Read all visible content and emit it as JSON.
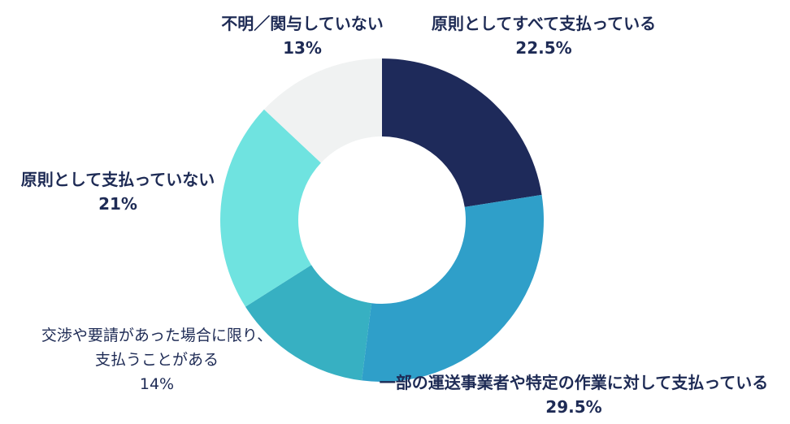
{
  "chart_data": {
    "type": "pie",
    "subtype": "donut",
    "start_angle_deg": 0,
    "direction": "clockwise",
    "unit": "%",
    "title": "",
    "legend": "none",
    "text_color": "#1e2b55",
    "background_color": "#ffffff",
    "segments": [
      {
        "label": "原則としてすべて支払っている",
        "value": 22.5,
        "color": "#1e2a5a"
      },
      {
        "label": "一部の運送事業者や特定の作業に対して支払っている",
        "value": 29.5,
        "color": "#2f9fc9"
      },
      {
        "label": "交渉や要請があった場合に限り、支払うことがある",
        "value": 14,
        "color": "#37b0c2"
      },
      {
        "label": "原則として支払っていない",
        "value": 21,
        "color": "#6fe3e0"
      },
      {
        "label": "不明／関与していない",
        "value": 13,
        "color": "#f0f2f2"
      }
    ]
  },
  "labels": {
    "unknown": {
      "line1": "不明／関与していない",
      "pct": "13%"
    },
    "all_paid": {
      "line1": "原則としてすべて支払っている",
      "pct": "22.5%"
    },
    "not_paid": {
      "line1": "原則として支払っていない",
      "pct": "21%"
    },
    "case_by_case": {
      "line1": "交渉や要請があった場合に限り、",
      "line2": "支払うことがある",
      "pct": "14%"
    },
    "partial": {
      "line1": "一部の運送事業者や特定の作業に対して支払っている",
      "pct": "29.5%"
    }
  }
}
